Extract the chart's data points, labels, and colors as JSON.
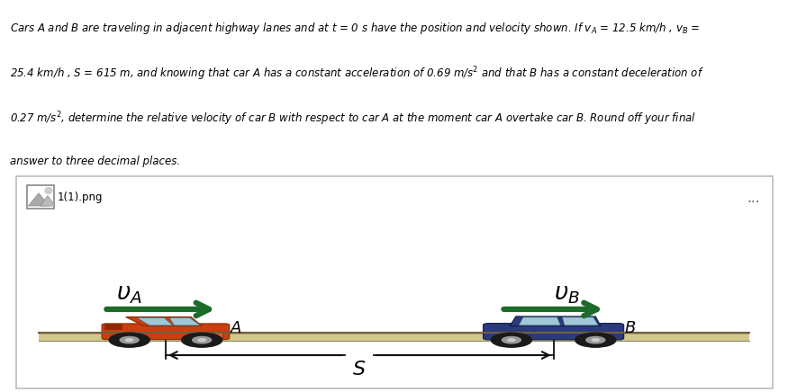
{
  "background_color": "#ffffff",
  "problem_text": "Cars A and B are traveling in adjacent highway lanes and at t = 0 s have the position and velocity shown. If v_A = 12.5 km/h , v_B =\n25.4 km/h , S = 615 m, and knowing that car A has a constant acceleration of 0.69 m/s² and that B has a constant deceleration of\n0.27 m/s², determine the relative velocity of car B with respect to car A at the moment car A overtake car B. Round off your final\nanswer to three decimal places.",
  "file_label": "1(1).png",
  "label_A": "A",
  "label_B": "B",
  "label_S": "S",
  "arrow_color": "#1d6b2a",
  "road_top_color": "#c8b97a",
  "road_body_color": "#d4c98c",
  "text_color": "#000000",
  "panel_border": "#bbbbbb",
  "ellipsis_color": "#666666",
  "dim_line_color": "#111111",
  "car_A_body": "#c84010",
  "car_A_dark": "#8b2a00",
  "car_B_body": "#2a3a7a",
  "car_B_dark": "#111a44",
  "wheel_color": "#1a1a1a",
  "wheel_inner": "#999999",
  "window_color": "#a0c8d8"
}
